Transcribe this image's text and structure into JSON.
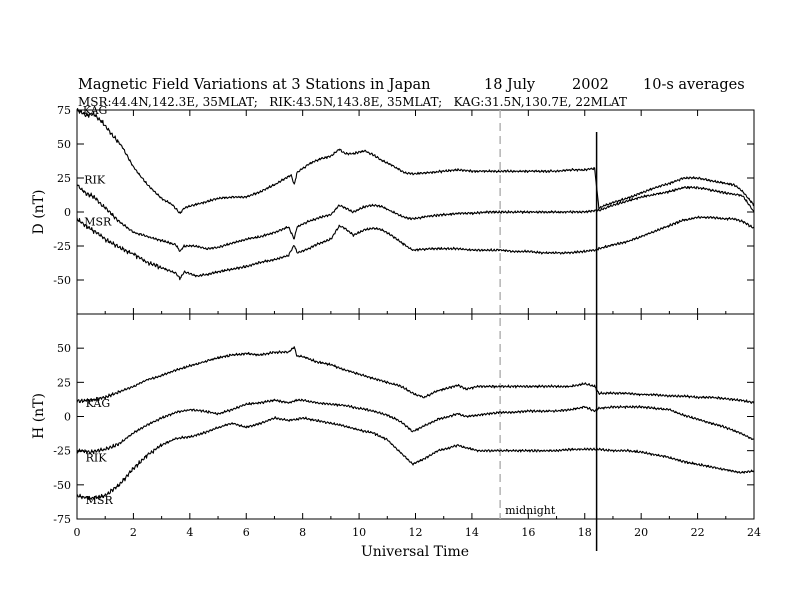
{
  "title": {
    "main": "Magnetic Field Variations at 3 Stations in Japan",
    "date": "18 July",
    "year": "2002",
    "averaging": "10-s averages"
  },
  "stations_line": "MSR:44.4N,142.3E, 35MLAT;   RIK:43.5N,143.8E, 35MLAT;   KAG:31.5N,130.7E, 22MLAT",
  "chart_data": [
    {
      "type": "line",
      "panel": "D",
      "ylabel": "D (nT)",
      "xlabel": "",
      "xlim": [
        0,
        24
      ],
      "ylim": [
        -75,
        75
      ],
      "yticks": [
        75,
        50,
        25,
        0,
        -25,
        -50
      ],
      "series": [
        {
          "name": "KAG",
          "label_at": [
            0.1,
            72
          ],
          "x": [
            0,
            0.3,
            0.6,
            0.9,
            1.2,
            1.6,
            2.0,
            2.5,
            3.0,
            3.4,
            3.65,
            3.8,
            4.1,
            4.5,
            5.0,
            5.5,
            6.0,
            6.5,
            7.0,
            7.4,
            7.6,
            7.7,
            7.8,
            8.2,
            8.6,
            9.0,
            9.3,
            9.5,
            9.8,
            10.2,
            10.5,
            10.8,
            11.2,
            11.6,
            11.9,
            12.5,
            13.0,
            13.5,
            14.0,
            14.5,
            15.0,
            15.5,
            16.0,
            16.5,
            17.0,
            17.5,
            18.0,
            18.35,
            18.5,
            19.0,
            19.5,
            20.0,
            20.5,
            21.0,
            21.5,
            22.0,
            22.5,
            23.0,
            23.3,
            23.6,
            24.0
          ],
          "y": [
            75,
            71,
            72,
            66,
            58,
            48,
            33,
            20,
            10,
            5,
            -1,
            3,
            5,
            7,
            10,
            11,
            11,
            15,
            20,
            25,
            27,
            20,
            29,
            35,
            39,
            41,
            46,
            43,
            43,
            45,
            42,
            38,
            34,
            29,
            28,
            29,
            30,
            31,
            30,
            30,
            30,
            30,
            30,
            30,
            30,
            31,
            31,
            32,
            3,
            7,
            10,
            14,
            18,
            21,
            25,
            25,
            23,
            21,
            20,
            15,
            5
          ]
        },
        {
          "name": "RIK",
          "label_at": [
            0.15,
            21
          ],
          "x": [
            0,
            0.3,
            0.6,
            1.0,
            1.5,
            2.0,
            2.5,
            3.0,
            3.5,
            3.65,
            3.8,
            4.2,
            4.6,
            5.0,
            5.5,
            6.0,
            6.5,
            7.0,
            7.5,
            7.7,
            7.8,
            8.2,
            8.6,
            9.0,
            9.3,
            9.5,
            9.8,
            10.2,
            10.5,
            10.8,
            11.2,
            11.6,
            11.9,
            12.5,
            13.0,
            13.5,
            14.0,
            14.5,
            15.0,
            15.5,
            16.0,
            16.5,
            17.0,
            17.5,
            18.0,
            18.35,
            18.5,
            19.0,
            19.5,
            20.0,
            20.5,
            21.0,
            21.5,
            22.0,
            22.5,
            23.0,
            23.3,
            23.6,
            24.0
          ],
          "y": [
            20,
            14,
            11,
            3,
            -7,
            -15,
            -18,
            -21,
            -24,
            -29,
            -25,
            -25,
            -27,
            -26,
            -23,
            -20,
            -18,
            -15,
            -11,
            -20,
            -11,
            -7,
            -4,
            -2,
            5,
            3,
            0,
            4,
            5,
            4,
            0,
            -4,
            -5,
            -3,
            -2,
            -1,
            -1,
            0,
            0,
            0,
            0,
            0,
            0,
            0,
            0,
            1,
            1,
            5,
            8,
            11,
            13,
            15,
            18,
            18,
            16,
            14,
            13,
            12,
            0
          ]
        },
        {
          "name": "MSR",
          "label_at": [
            0.15,
            -10
          ],
          "x": [
            0,
            0.3,
            0.6,
            1.0,
            1.5,
            2.0,
            2.5,
            3.0,
            3.5,
            3.65,
            3.8,
            4.2,
            4.6,
            5.0,
            5.5,
            6.0,
            6.5,
            7.0,
            7.5,
            7.7,
            7.8,
            8.2,
            8.6,
            9.0,
            9.3,
            9.5,
            9.8,
            10.2,
            10.5,
            10.8,
            11.2,
            11.6,
            11.9,
            12.5,
            13.0,
            13.5,
            14.0,
            14.5,
            15.0,
            15.5,
            16.0,
            16.5,
            17.0,
            17.5,
            18.0,
            18.35,
            18.5,
            19.0,
            19.5,
            20.0,
            20.5,
            21.0,
            21.5,
            22.0,
            22.5,
            23.0,
            23.3,
            23.6,
            24.0
          ],
          "y": [
            -5,
            -10,
            -14,
            -20,
            -26,
            -31,
            -37,
            -41,
            -45,
            -49,
            -44,
            -47,
            -46,
            -44,
            -42,
            -40,
            -37,
            -35,
            -32,
            -24,
            -30,
            -27,
            -23,
            -20,
            -10,
            -12,
            -17,
            -13,
            -12,
            -13,
            -18,
            -24,
            -28,
            -27,
            -27,
            -27,
            -28,
            -28,
            -28,
            -29,
            -29,
            -30,
            -30,
            -30,
            -29,
            -28,
            -27,
            -24,
            -22,
            -18,
            -14,
            -10,
            -6,
            -4,
            -4,
            -5,
            -5,
            -7,
            -12
          ]
        }
      ]
    },
    {
      "type": "line",
      "panel": "H",
      "ylabel": "H (nT)",
      "xlabel": "Universal Time",
      "xlim": [
        0,
        24
      ],
      "ylim": [
        -75,
        75
      ],
      "xticks": [
        0,
        2,
        4,
        6,
        8,
        10,
        12,
        14,
        16,
        18,
        20,
        22,
        24
      ],
      "yticks": [
        50,
        25,
        0,
        -25,
        -50,
        -75
      ],
      "vertical_line": {
        "x": 15,
        "label": "midnight",
        "style": "dashed"
      },
      "series": [
        {
          "name": "KAG",
          "label_at": [
            0.2,
            7
          ],
          "x": [
            0,
            0.5,
            1.0,
            1.5,
            2.0,
            2.5,
            3.0,
            3.5,
            4.0,
            4.5,
            5.0,
            5.5,
            6.0,
            6.5,
            7.0,
            7.5,
            7.7,
            7.8,
            8.0,
            8.5,
            9.0,
            9.5,
            10.0,
            10.5,
            11.0,
            11.5,
            11.9,
            12.3,
            12.8,
            13.2,
            13.5,
            13.8,
            14.2,
            15.0,
            15.5,
            16.0,
            16.5,
            17.0,
            17.5,
            18.0,
            18.35,
            18.5,
            19.0,
            19.5,
            20.0,
            20.5,
            21.0,
            21.5,
            22.0,
            22.5,
            23.0,
            23.5,
            24.0
          ],
          "y": [
            11,
            12,
            14,
            18,
            22,
            27,
            30,
            34,
            37,
            40,
            43,
            45,
            46,
            45,
            47,
            47,
            51,
            44,
            44,
            40,
            38,
            34,
            31,
            28,
            25,
            22,
            17,
            14,
            19,
            21,
            23,
            20,
            22,
            22,
            22,
            22,
            22,
            22,
            22,
            24,
            22,
            17,
            17,
            17,
            16,
            16,
            15,
            15,
            14,
            14,
            13,
            12,
            10
          ]
        },
        {
          "name": "RIK",
          "label_at": [
            0.2,
            -33
          ],
          "x": [
            0,
            0.5,
            1.0,
            1.5,
            2.0,
            2.5,
            3.0,
            3.5,
            4.0,
            4.5,
            5.0,
            5.5,
            6.0,
            6.5,
            7.0,
            7.5,
            7.8,
            8.0,
            8.5,
            9.0,
            9.5,
            10.0,
            10.5,
            11.0,
            11.5,
            11.9,
            12.3,
            12.8,
            13.2,
            13.5,
            13.8,
            14.2,
            15.0,
            15.5,
            16.0,
            16.5,
            17.0,
            17.5,
            18.0,
            18.35,
            18.5,
            19.0,
            19.5,
            20.0,
            20.5,
            21.0,
            21.5,
            22.0,
            22.5,
            23.0,
            23.5,
            24.0
          ],
          "y": [
            -25,
            -26,
            -24,
            -20,
            -12,
            -6,
            -1,
            3,
            5,
            4,
            2,
            5,
            9,
            10,
            12,
            10,
            12,
            12,
            10,
            9,
            8,
            6,
            4,
            1,
            -4,
            -11,
            -7,
            -2,
            0,
            2,
            0,
            1,
            3,
            3,
            4,
            4,
            4,
            5,
            7,
            4,
            6,
            7,
            7,
            7,
            6,
            5,
            1,
            -2,
            -5,
            -8,
            -12,
            -17
          ]
        },
        {
          "name": "MSR",
          "label_at": [
            0.2,
            -64
          ],
          "x": [
            0,
            0.5,
            1.0,
            1.5,
            2.0,
            2.5,
            3.0,
            3.5,
            4.0,
            4.5,
            5.0,
            5.5,
            6.0,
            6.5,
            7.0,
            7.5,
            7.8,
            8.0,
            8.5,
            9.0,
            9.5,
            10.0,
            10.5,
            11.0,
            11.5,
            11.9,
            12.3,
            12.8,
            13.2,
            13.5,
            13.8,
            14.2,
            15.0,
            15.5,
            16.0,
            16.5,
            17.0,
            17.5,
            18.0,
            18.35,
            18.5,
            19.0,
            19.5,
            20.0,
            20.5,
            21.0,
            21.5,
            22.0,
            22.5,
            23.0,
            23.5,
            24.0
          ],
          "y": [
            -58,
            -60,
            -58,
            -50,
            -38,
            -28,
            -21,
            -16,
            -15,
            -12,
            -8,
            -5,
            -8,
            -5,
            -1,
            -3,
            -2,
            -1,
            -3,
            -5,
            -7,
            -10,
            -12,
            -17,
            -27,
            -35,
            -31,
            -25,
            -23,
            -21,
            -23,
            -25,
            -25,
            -25,
            -25,
            -25,
            -25,
            -24,
            -24,
            -24,
            -24,
            -25,
            -25,
            -26,
            -28,
            -30,
            -33,
            -35,
            -37,
            -39,
            -41,
            -40
          ]
        }
      ]
    }
  ],
  "event_marker": {
    "x": 18.42
  }
}
